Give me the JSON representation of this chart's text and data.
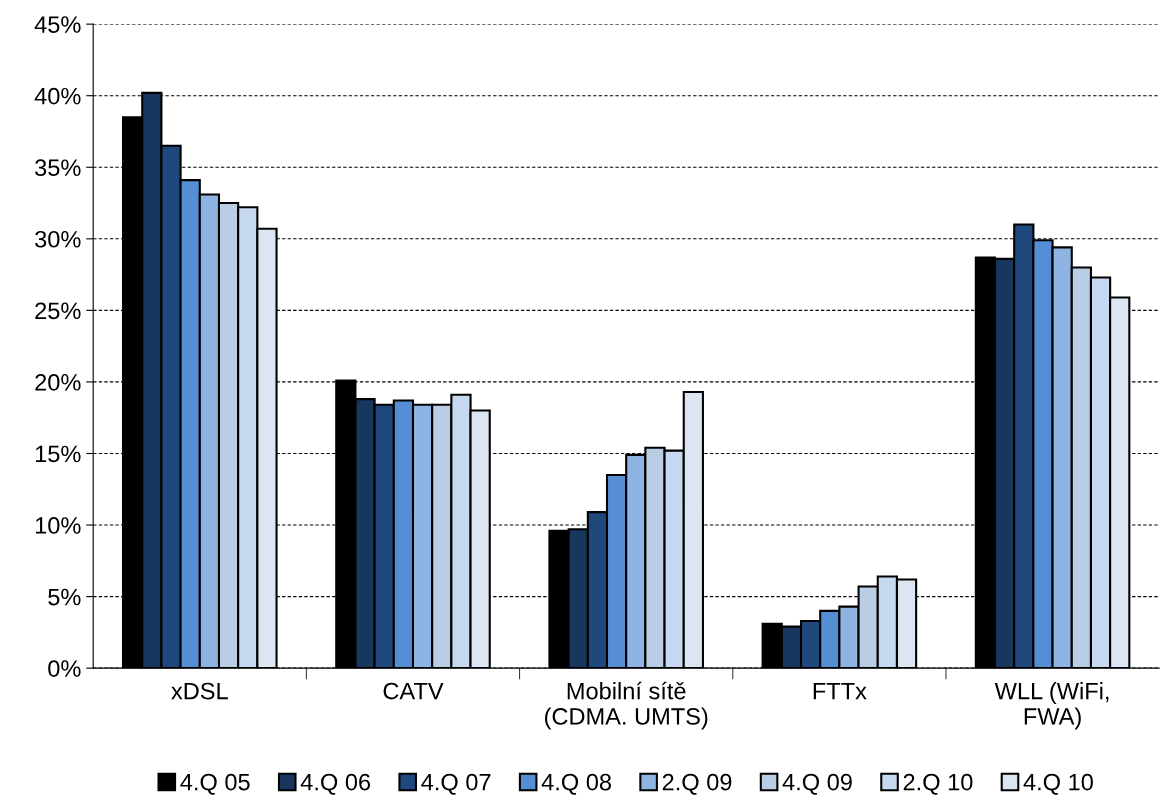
{
  "chart_data": {
    "type": "bar",
    "categories": [
      "xDSL",
      "CATV",
      "Mobilní sítě\n(CDMA. UMTS)",
      "FTTx",
      "WLL (WiFi,\nFWA)"
    ],
    "series": [
      {
        "name": "4.Q 05",
        "color": "#000000",
        "values": [
          38.5,
          20.1,
          9.6,
          3.1,
          28.7
        ]
      },
      {
        "name": "4.Q 06",
        "color": "#17375e",
        "values": [
          40.2,
          18.8,
          9.7,
          2.9,
          28.6
        ]
      },
      {
        "name": "4.Q 07",
        "color": "#1f497d",
        "values": [
          36.5,
          18.4,
          10.9,
          3.3,
          31.0
        ]
      },
      {
        "name": "4.Q 08",
        "color": "#558ed5",
        "values": [
          34.1,
          18.7,
          13.5,
          4.0,
          29.9
        ]
      },
      {
        "name": "2.Q 09",
        "color": "#8eb4e3",
        "values": [
          33.1,
          18.4,
          14.9,
          4.3,
          29.4
        ]
      },
      {
        "name": "4.Q 09",
        "color": "#b9cde5",
        "values": [
          32.5,
          18.4,
          15.4,
          5.7,
          28.0
        ]
      },
      {
        "name": "2.Q 10",
        "color": "#c6d9f1",
        "values": [
          32.2,
          19.1,
          15.2,
          6.4,
          27.3
        ]
      },
      {
        "name": "4.Q 10",
        "color": "#dce6f2",
        "values": [
          30.7,
          18.0,
          19.3,
          6.2,
          25.9
        ]
      }
    ],
    "ylim": [
      0,
      45
    ],
    "yticks": [
      {
        "value": 0,
        "label": "0%"
      },
      {
        "value": 5,
        "label": "5%"
      },
      {
        "value": 10,
        "label": "10%"
      },
      {
        "value": 15,
        "label": "15%"
      },
      {
        "value": 20,
        "label": "20%"
      },
      {
        "value": 25,
        "label": "25%"
      },
      {
        "value": 30,
        "label": "30%"
      },
      {
        "value": 35,
        "label": "35%"
      },
      {
        "value": 40,
        "label": "40%"
      },
      {
        "value": 45,
        "label": "45%"
      }
    ],
    "grid": "y",
    "legend": "bottom"
  }
}
